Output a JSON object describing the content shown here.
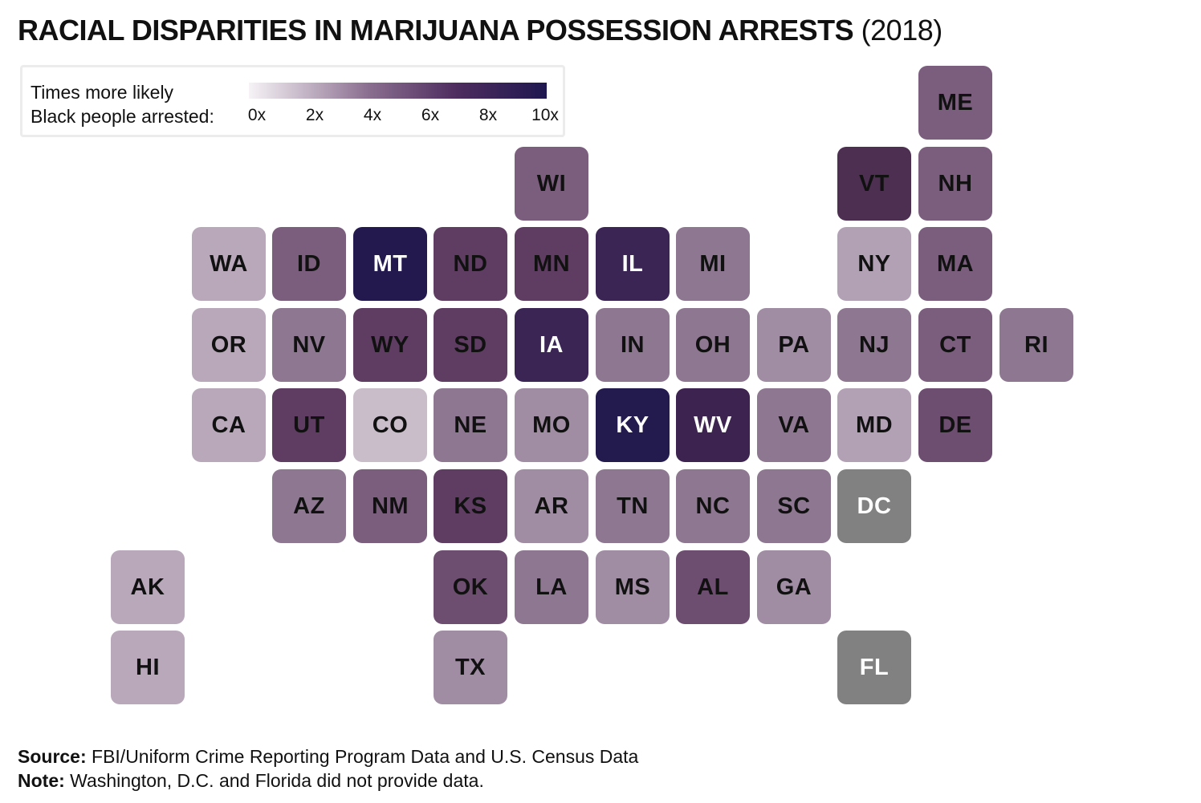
{
  "title": {
    "main": "RACIAL DISPARITIES IN MARIJUANA POSSESSION ARRESTS",
    "year": "(2018)"
  },
  "legend": {
    "label_line1": "Times more likely",
    "label_line2": "Black people arrested:",
    "ticks": [
      "0x",
      "2x",
      "4x",
      "6x",
      "8x",
      "10x"
    ],
    "scale_colors": [
      "#f6f3f6",
      "#8b6f90",
      "#4d2c5e",
      "#1f1850"
    ]
  },
  "no_data_color": "#818181",
  "states": [
    {
      "code": "ME",
      "col": 11,
      "row": 0,
      "color": "#7b5e7e",
      "text_color": "#111111"
    },
    {
      "code": "WI",
      "col": 6,
      "row": 1,
      "color": "#7b5e7e",
      "text_color": "#111111"
    },
    {
      "code": "VT",
      "col": 10,
      "row": 1,
      "color": "#4d2f52",
      "text_color": "#111111"
    },
    {
      "code": "NH",
      "col": 11,
      "row": 1,
      "color": "#7b5e7e",
      "text_color": "#111111"
    },
    {
      "code": "WA",
      "col": 2,
      "row": 2,
      "color": "#b8a8ba",
      "text_color": "#111111"
    },
    {
      "code": "ID",
      "col": 3,
      "row": 2,
      "color": "#7b5e7e",
      "text_color": "#111111"
    },
    {
      "code": "MT",
      "col": 4,
      "row": 2,
      "color": "#23194f",
      "text_color": "#ffffff"
    },
    {
      "code": "ND",
      "col": 5,
      "row": 2,
      "color": "#5f3d62",
      "text_color": "#111111"
    },
    {
      "code": "MN",
      "col": 6,
      "row": 2,
      "color": "#5f3d62",
      "text_color": "#111111"
    },
    {
      "code": "IL",
      "col": 7,
      "row": 2,
      "color": "#3a2555",
      "text_color": "#ffffff"
    },
    {
      "code": "MI",
      "col": 8,
      "row": 2,
      "color": "#8e7791",
      "text_color": "#111111"
    },
    {
      "code": "NY",
      "col": 10,
      "row": 2,
      "color": "#b2a1b5",
      "text_color": "#111111"
    },
    {
      "code": "MA",
      "col": 11,
      "row": 2,
      "color": "#7b5e7e",
      "text_color": "#111111"
    },
    {
      "code": "OR",
      "col": 2,
      "row": 3,
      "color": "#b8a8ba",
      "text_color": "#111111"
    },
    {
      "code": "NV",
      "col": 3,
      "row": 3,
      "color": "#8e7791",
      "text_color": "#111111"
    },
    {
      "code": "WY",
      "col": 4,
      "row": 3,
      "color": "#5f3d62",
      "text_color": "#111111"
    },
    {
      "code": "SD",
      "col": 5,
      "row": 3,
      "color": "#5f3d62",
      "text_color": "#111111"
    },
    {
      "code": "IA",
      "col": 6,
      "row": 3,
      "color": "#3a2555",
      "text_color": "#ffffff"
    },
    {
      "code": "IN",
      "col": 7,
      "row": 3,
      "color": "#8e7791",
      "text_color": "#111111"
    },
    {
      "code": "OH",
      "col": 8,
      "row": 3,
      "color": "#8e7791",
      "text_color": "#111111"
    },
    {
      "code": "PA",
      "col": 9,
      "row": 3,
      "color": "#a08da3",
      "text_color": "#111111"
    },
    {
      "code": "NJ",
      "col": 10,
      "row": 3,
      "color": "#8e7791",
      "text_color": "#111111"
    },
    {
      "code": "CT",
      "col": 11,
      "row": 3,
      "color": "#7b5e7e",
      "text_color": "#111111"
    },
    {
      "code": "RI",
      "col": 12,
      "row": 3,
      "color": "#8e7791",
      "text_color": "#111111"
    },
    {
      "code": "CA",
      "col": 2,
      "row": 4,
      "color": "#b8a8ba",
      "text_color": "#111111"
    },
    {
      "code": "UT",
      "col": 3,
      "row": 4,
      "color": "#5f3d62",
      "text_color": "#111111"
    },
    {
      "code": "CO",
      "col": 4,
      "row": 4,
      "color": "#c9bdca",
      "text_color": "#111111"
    },
    {
      "code": "NE",
      "col": 5,
      "row": 4,
      "color": "#8e7791",
      "text_color": "#111111"
    },
    {
      "code": "MO",
      "col": 6,
      "row": 4,
      "color": "#a08da3",
      "text_color": "#111111"
    },
    {
      "code": "KY",
      "col": 7,
      "row": 4,
      "color": "#231a4d",
      "text_color": "#ffffff"
    },
    {
      "code": "WV",
      "col": 8,
      "row": 4,
      "color": "#3d2450",
      "text_color": "#ffffff"
    },
    {
      "code": "VA",
      "col": 9,
      "row": 4,
      "color": "#8e7791",
      "text_color": "#111111"
    },
    {
      "code": "MD",
      "col": 10,
      "row": 4,
      "color": "#b2a1b5",
      "text_color": "#111111"
    },
    {
      "code": "DE",
      "col": 11,
      "row": 4,
      "color": "#6d4e70",
      "text_color": "#111111"
    },
    {
      "code": "AZ",
      "col": 3,
      "row": 5,
      "color": "#8e7791",
      "text_color": "#111111"
    },
    {
      "code": "NM",
      "col": 4,
      "row": 5,
      "color": "#7b5e7e",
      "text_color": "#111111"
    },
    {
      "code": "KS",
      "col": 5,
      "row": 5,
      "color": "#5f3d62",
      "text_color": "#111111"
    },
    {
      "code": "AR",
      "col": 6,
      "row": 5,
      "color": "#a08da3",
      "text_color": "#111111"
    },
    {
      "code": "TN",
      "col": 7,
      "row": 5,
      "color": "#8e7791",
      "text_color": "#111111"
    },
    {
      "code": "NC",
      "col": 8,
      "row": 5,
      "color": "#8e7791",
      "text_color": "#111111"
    },
    {
      "code": "SC",
      "col": 9,
      "row": 5,
      "color": "#8e7791",
      "text_color": "#111111"
    },
    {
      "code": "DC",
      "col": 10,
      "row": 5,
      "color": "#818181",
      "text_color": "#ffffff"
    },
    {
      "code": "AK",
      "col": 1,
      "row": 6,
      "color": "#b8a8ba",
      "text_color": "#111111"
    },
    {
      "code": "OK",
      "col": 5,
      "row": 6,
      "color": "#6d4e70",
      "text_color": "#111111"
    },
    {
      "code": "LA",
      "col": 6,
      "row": 6,
      "color": "#8e7791",
      "text_color": "#111111"
    },
    {
      "code": "MS",
      "col": 7,
      "row": 6,
      "color": "#a08da3",
      "text_color": "#111111"
    },
    {
      "code": "AL",
      "col": 8,
      "row": 6,
      "color": "#6d4e70",
      "text_color": "#111111"
    },
    {
      "code": "GA",
      "col": 9,
      "row": 6,
      "color": "#a08da3",
      "text_color": "#111111"
    },
    {
      "code": "HI",
      "col": 1,
      "row": 7,
      "color": "#b8a8ba",
      "text_color": "#111111"
    },
    {
      "code": "TX",
      "col": 5,
      "row": 7,
      "color": "#a08da3",
      "text_color": "#111111"
    },
    {
      "code": "FL",
      "col": 10,
      "row": 7,
      "color": "#818181",
      "text_color": "#ffffff"
    }
  ],
  "footer": {
    "source_label": "Source:",
    "source_text": " FBI/Uniform Crime Reporting Program Data and U.S. Census Data",
    "note_label": "Note:",
    "note_text": " Washington, D.C. and Florida did not provide data."
  }
}
